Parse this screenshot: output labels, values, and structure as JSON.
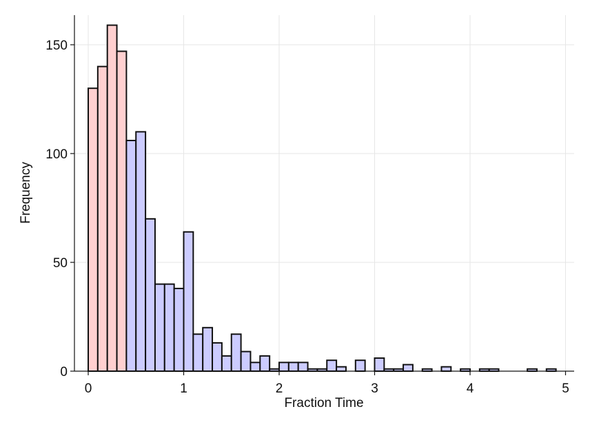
{
  "chart_data": {
    "type": "bar",
    "title": "",
    "xlabel": "Fraction Time",
    "ylabel": "Frequency",
    "xlim": [
      0,
      5
    ],
    "ylim": [
      0,
      160
    ],
    "x_ticks": [
      "0",
      "1",
      "2",
      "3",
      "4",
      "5"
    ],
    "y_ticks": [
      "0",
      "50",
      "100",
      "150"
    ],
    "grid": true,
    "bin_width": 0.1,
    "highlight_color": "#ffd0d0",
    "base_color": "#ccccff",
    "edge_color": "#111111",
    "bins": [
      {
        "x": 0.0,
        "count": 130,
        "highlight": true
      },
      {
        "x": 0.1,
        "count": 140,
        "highlight": true
      },
      {
        "x": 0.2,
        "count": 159,
        "highlight": true
      },
      {
        "x": 0.3,
        "count": 147,
        "highlight": true
      },
      {
        "x": 0.4,
        "count": 106,
        "highlight": false
      },
      {
        "x": 0.5,
        "count": 110,
        "highlight": false
      },
      {
        "x": 0.6,
        "count": 70,
        "highlight": false
      },
      {
        "x": 0.7,
        "count": 40,
        "highlight": false
      },
      {
        "x": 0.8,
        "count": 40,
        "highlight": false
      },
      {
        "x": 0.9,
        "count": 38,
        "highlight": false
      },
      {
        "x": 1.0,
        "count": 64,
        "highlight": false
      },
      {
        "x": 1.1,
        "count": 17,
        "highlight": false
      },
      {
        "x": 1.2,
        "count": 20,
        "highlight": false
      },
      {
        "x": 1.3,
        "count": 13,
        "highlight": false
      },
      {
        "x": 1.4,
        "count": 7,
        "highlight": false
      },
      {
        "x": 1.5,
        "count": 17,
        "highlight": false
      },
      {
        "x": 1.6,
        "count": 9,
        "highlight": false
      },
      {
        "x": 1.7,
        "count": 4,
        "highlight": false
      },
      {
        "x": 1.8,
        "count": 7,
        "highlight": false
      },
      {
        "x": 1.9,
        "count": 1,
        "highlight": false
      },
      {
        "x": 2.0,
        "count": 4,
        "highlight": false
      },
      {
        "x": 2.1,
        "count": 4,
        "highlight": false
      },
      {
        "x": 2.2,
        "count": 4,
        "highlight": false
      },
      {
        "x": 2.3,
        "count": 1,
        "highlight": false
      },
      {
        "x": 2.4,
        "count": 1,
        "highlight": false
      },
      {
        "x": 2.5,
        "count": 5,
        "highlight": false
      },
      {
        "x": 2.6,
        "count": 2,
        "highlight": false
      },
      {
        "x": 2.8,
        "count": 5,
        "highlight": false
      },
      {
        "x": 3.0,
        "count": 6,
        "highlight": false
      },
      {
        "x": 3.1,
        "count": 1,
        "highlight": false
      },
      {
        "x": 3.2,
        "count": 1,
        "highlight": false
      },
      {
        "x": 3.3,
        "count": 3,
        "highlight": false
      },
      {
        "x": 3.5,
        "count": 1,
        "highlight": false
      },
      {
        "x": 3.7,
        "count": 2,
        "highlight": false
      },
      {
        "x": 3.9,
        "count": 1,
        "highlight": false
      },
      {
        "x": 4.1,
        "count": 1,
        "highlight": false
      },
      {
        "x": 4.2,
        "count": 1,
        "highlight": false
      },
      {
        "x": 4.6,
        "count": 1,
        "highlight": false
      },
      {
        "x": 4.8,
        "count": 1,
        "highlight": false
      }
    ]
  }
}
